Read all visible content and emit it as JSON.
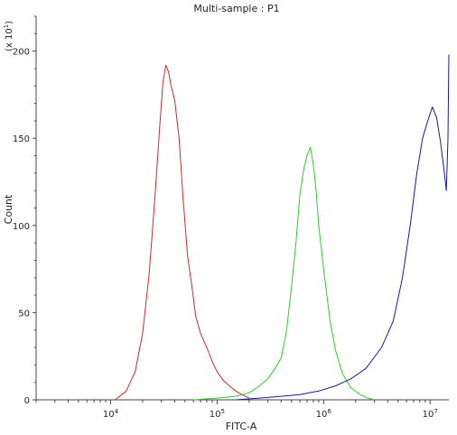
{
  "chart_data": {
    "type": "line",
    "title": "Multi-sample : P1",
    "xlabel": "FITC-A",
    "ylabel": "Count",
    "yscale_label": "(x 10",
    "yscale_exp": "1",
    "yscale_close": ")",
    "x_scale": "log",
    "xlim": [
      2000,
      15000000
    ],
    "ylim": [
      0,
      220
    ],
    "grid": false,
    "x_ticks": [
      {
        "value": 10000,
        "base": "10",
        "exp": "4"
      },
      {
        "value": 100000,
        "base": "10",
        "exp": "5"
      },
      {
        "value": 1000000,
        "base": "10",
        "exp": "6"
      },
      {
        "value": 10000000,
        "base": "10",
        "exp": "7"
      }
    ],
    "y_ticks": [
      0,
      50,
      100,
      150,
      200
    ],
    "series": [
      {
        "color": "#cc2a2a",
        "x": [
          11000,
          14000,
          17000,
          20000,
          23000,
          26000,
          29000,
          31000,
          33000,
          35000,
          37000,
          40000,
          44000,
          48000,
          53000,
          58000,
          63000,
          70000,
          80000,
          90000,
          100000,
          115000,
          130000,
          150000,
          170000,
          200000
        ],
        "y": [
          0,
          5,
          16,
          38,
          72,
          115,
          158,
          182,
          192,
          188,
          180,
          172,
          150,
          115,
          82,
          65,
          48,
          38,
          30,
          22,
          16,
          11,
          8,
          5,
          3,
          1
        ]
      },
      {
        "color": "#2ecc2e",
        "x": [
          60000,
          100000,
          150000,
          200000,
          250000,
          300000,
          350000,
          400000,
          450000,
          500000,
          550000,
          600000,
          650000,
          700000,
          750000,
          800000,
          850000,
          900000,
          1000000,
          1150000,
          1300000,
          1500000,
          1800000,
          2200000,
          2600000,
          3000000
        ],
        "y": [
          0,
          1,
          2,
          4,
          8,
          12,
          18,
          24,
          40,
          65,
          90,
          118,
          132,
          140,
          145,
          135,
          120,
          100,
          75,
          45,
          28,
          15,
          7,
          3,
          1,
          0
        ]
      },
      {
        "color": "#1a1a99",
        "x": [
          150000,
          250000,
          400000,
          600000,
          900000,
          1300000,
          1800000,
          2500000,
          3500000,
          4500000,
          5500000,
          6500000,
          7500000,
          8500000,
          9500000,
          10500000,
          11500000,
          12500000,
          13500000,
          14200000,
          14700000,
          15000000
        ],
        "y": [
          0,
          1,
          2,
          3,
          5,
          8,
          12,
          18,
          30,
          45,
          70,
          100,
          130,
          150,
          160,
          168,
          162,
          148,
          132,
          120,
          150,
          198
        ]
      }
    ]
  }
}
